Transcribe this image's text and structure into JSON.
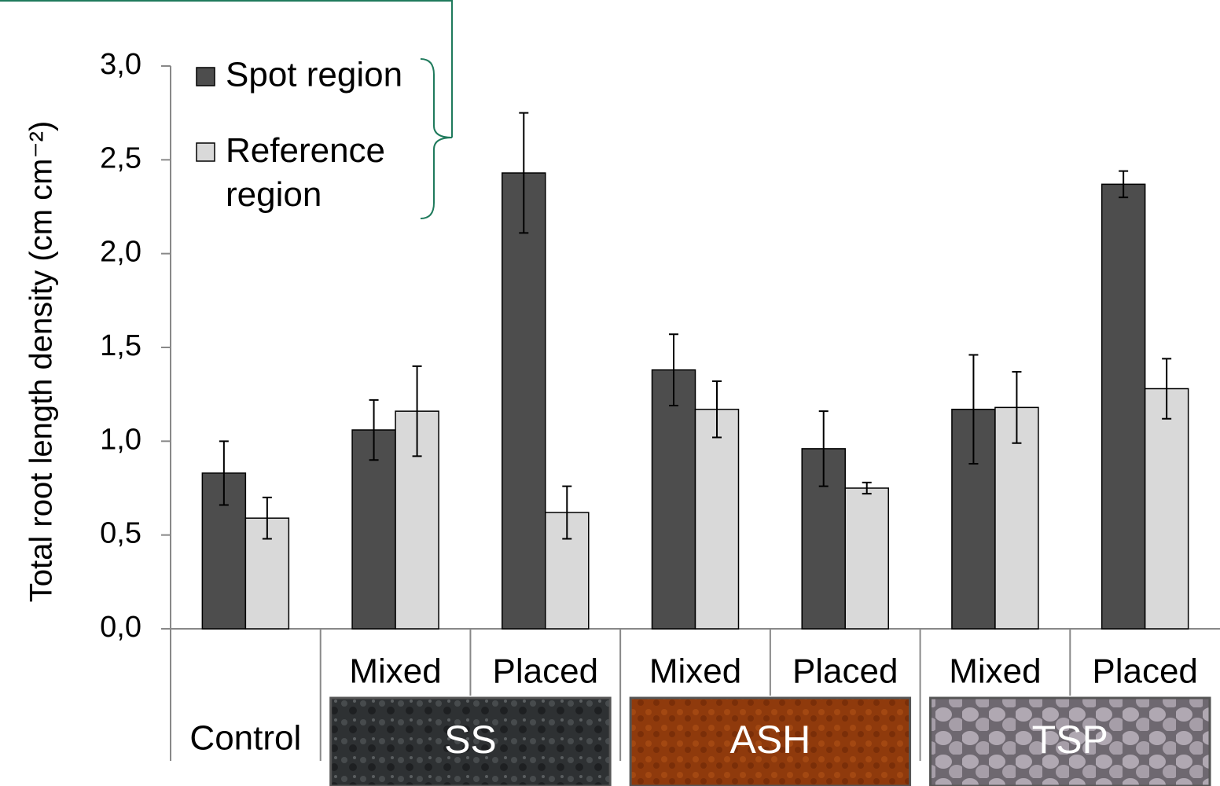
{
  "chart_data": {
    "type": "bar",
    "y_label": "Total root length density (cm cm⁻²)",
    "categories": [
      "Control",
      "Mixed",
      "Placed",
      "Mixed",
      "Placed",
      "Mixed",
      "Placed"
    ],
    "groups": [
      null,
      "SS",
      "SS",
      "ASH",
      "ASH",
      "TSP",
      "TSP"
    ],
    "series": [
      {
        "name": "Spot region",
        "color": "#4d4d4d",
        "values": [
          0.83,
          1.06,
          2.43,
          1.38,
          0.96,
          1.17,
          2.37
        ],
        "errors": [
          0.17,
          0.16,
          0.32,
          0.19,
          0.2,
          0.29,
          0.07
        ]
      },
      {
        "name": "Reference region",
        "color": "#d9d9d9",
        "values": [
          0.59,
          1.16,
          0.62,
          1.17,
          0.75,
          1.18,
          1.28
        ],
        "errors": [
          0.11,
          0.24,
          0.14,
          0.15,
          0.03,
          0.19,
          0.16
        ]
      }
    ],
    "ylim": [
      0,
      3
    ],
    "yticks": [
      {
        "value": 0,
        "label": "0,0"
      },
      {
        "value": 0.5,
        "label": "0,5"
      },
      {
        "value": 1,
        "label": "1,0"
      },
      {
        "value": 1.5,
        "label": "1,5"
      },
      {
        "value": 2,
        "label": "2,0"
      },
      {
        "value": 2.5,
        "label": "2,5"
      },
      {
        "value": 3,
        "label": "3,0"
      }
    ],
    "legend": "top-left"
  }
}
